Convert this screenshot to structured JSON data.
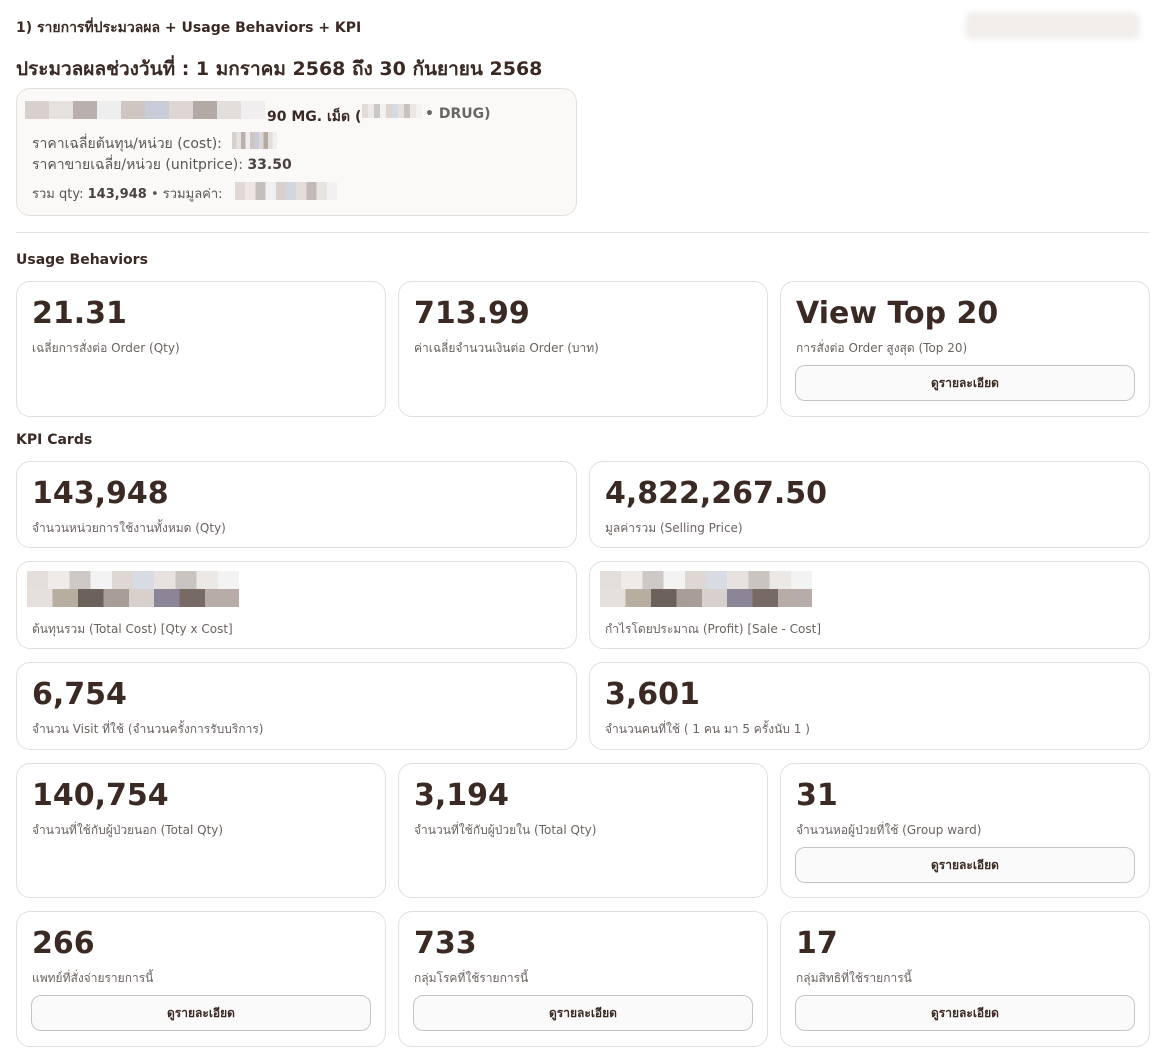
{
  "header": {
    "title": "1) รายการที่ประมวลผล + Usage Behaviors + KPI",
    "period": "ประมวลผลช่วงวันที่ : 1 มกราคม 2568 ถึง 30 กันยายน 2568"
  },
  "item": {
    "name_suffix": "90 MG. เม็ด (",
    "drug_suffix": "• DRUG)",
    "cost_label": "ราคาเฉลี่ยต้นทุน/หน่วย (cost):",
    "unitprice_label": "ราคาขายเฉลี่ย/หน่วย (unitprice):",
    "unitprice": "33.50",
    "qty_label": "รวม qty:",
    "qty": "143,948",
    "value_label": "• รวมมูลค่า:"
  },
  "usage": {
    "title": "Usage Behaviors",
    "cards": [
      {
        "value": "21.31",
        "label": "เฉลี่ยการสั่งต่อ Order (Qty)"
      },
      {
        "value": "713.99",
        "label": "ค่าเฉลี่ยจำนวนเงินต่อ Order (บาท)"
      },
      {
        "value": "View Top 20",
        "label": "การสั่งต่อ Order สูงสุด (Top 20)",
        "button": "ดูรายละเอียด"
      }
    ]
  },
  "kpi": {
    "title": "KPI Cards",
    "cards": [
      {
        "value": "143,948",
        "label": "จำนวนหน่วยการใช้งานทั้งหมด (Qty)"
      },
      {
        "value": "4,822,267.50",
        "label": "มูลค่ารวม (Selling Price)"
      },
      {
        "label": "ต้นทุนรวม (Total Cost) [Qty x Cost]"
      },
      {
        "label": "กำไรโดยประมาณ (Profit) [Sale - Cost]"
      },
      {
        "value": "6,754",
        "label": "จำนวน Visit ที่ใช้ (จำนวนครั้งการรับบริการ)"
      },
      {
        "value": "3,601",
        "label": "จำนวนคนที่ใช้ ( 1 คน มา 5 ครั้งนับ 1 )"
      },
      {
        "value": "140,754",
        "label": "จำนวนที่ใช้กับผู้ป่วยนอก (Total Qty)"
      },
      {
        "value": "3,194",
        "label": "จำนวนที่ใช้กับผู้ป่วยใน (Total Qty)"
      },
      {
        "value": "31",
        "label": "จำนวนหอผู้ป่วยที่ใช้ (Group ward)",
        "button": "ดูรายละเอียด"
      },
      {
        "value": "266",
        "label": "แพทย์ที่สั่งจ่ายรายการนี้",
        "button": "ดูรายละเอียด"
      },
      {
        "value": "733",
        "label": "กลุ่มโรคที่ใช้รายการนี้",
        "button": "ดูรายละเอียด"
      },
      {
        "value": "17",
        "label": "กลุ่มสิทธิที่ใช้รายการนี้",
        "button": "ดูรายละเอียด"
      }
    ]
  }
}
